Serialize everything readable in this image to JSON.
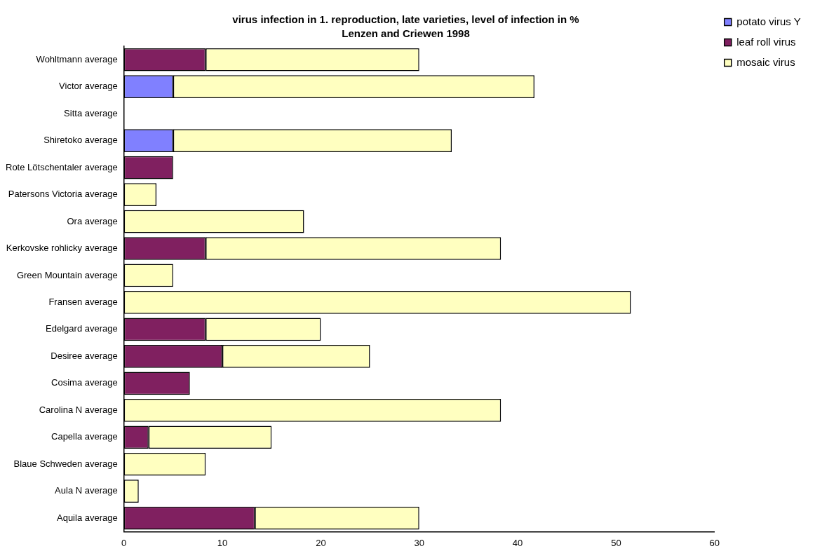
{
  "chart_data": {
    "type": "bar",
    "orientation": "horizontal",
    "stacked": true,
    "title": "virus infection in 1. reproduction, late varieties, level of infection in %",
    "subtitle": "Lenzen and Criewen 1998",
    "categories": [
      "Wohltmann average",
      "Victor average",
      "Sitta average",
      "Shiretoko average",
      "Rote Lötschentaler average",
      "Patersons Victoria average",
      "Ora average",
      "Kerkovske rohlicky average",
      "Green Mountain average",
      "Fransen average",
      "Edelgard average",
      "Desiree average",
      "Cosima average",
      "Carolina N average",
      "Capella average",
      "Blaue Schweden average",
      "Aula N average",
      "Aquila average"
    ],
    "series": [
      {
        "name": "potato virus Y",
        "color": "#8080ff",
        "values": [
          null,
          5,
          null,
          5,
          null,
          null,
          null,
          null,
          null,
          null,
          null,
          null,
          null,
          null,
          null,
          null,
          null,
          null
        ]
      },
      {
        "name": "leaf roll virus",
        "color": "#802060",
        "values": [
          8.3,
          null,
          null,
          null,
          5,
          null,
          null,
          8.3,
          null,
          null,
          8.3,
          10,
          6.7,
          null,
          2.5,
          null,
          null,
          13.3
        ]
      },
      {
        "name": "mosaic virus",
        "color": "#ffffc0",
        "values": [
          21.7,
          36.7,
          null,
          28.3,
          null,
          3.3,
          18.3,
          30,
          5,
          51.5,
          11.7,
          15,
          null,
          38.3,
          12.5,
          8.3,
          1.5,
          16.7
        ]
      }
    ],
    "xlim": [
      0,
      60
    ],
    "xticks": [
      0,
      10,
      20,
      30,
      40,
      50,
      60
    ],
    "grid": false,
    "legend": "top right"
  }
}
